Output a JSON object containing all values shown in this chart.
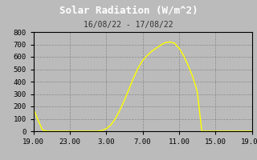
{
  "title": "Solar Radiation (W/m^2)",
  "subtitle": "16/08/22 - 17/08/22",
  "title_bg_color": "#000000",
  "plot_bg_color": "#bbbbbb",
  "fig_bg_color": "#bbbbbb",
  "line_color": "#ffff00",
  "title_color": "#ffffff",
  "subtitle_color": "#333333",
  "tick_color": "#000000",
  "grid_color": "#888888",
  "spine_color": "#000000",
  "ylim": [
    0,
    800
  ],
  "yticks": [
    0,
    100,
    200,
    300,
    400,
    500,
    600,
    700,
    800
  ],
  "xtick_labels": [
    "19.00",
    "23.00",
    "3.00",
    "7.00",
    "11.00",
    "15.00",
    "19.00"
  ],
  "xtick_positions": [
    0,
    4,
    8,
    12,
    16,
    20,
    24
  ],
  "x_hours": [
    0,
    0.5,
    1,
    1.5,
    2,
    3,
    4,
    5,
    6,
    7,
    7.5,
    8,
    8.5,
    9,
    9.5,
    10,
    10.5,
    11,
    11.5,
    12,
    12.5,
    13,
    13.5,
    14,
    14.5,
    15,
    15.5,
    16,
    16.5,
    17,
    17.5,
    18,
    18.5,
    19,
    19.5,
    20,
    21,
    22,
    23,
    24
  ],
  "y_values": [
    180,
    90,
    10,
    0,
    0,
    0,
    0,
    0,
    0,
    0,
    5,
    20,
    50,
    100,
    170,
    250,
    340,
    430,
    510,
    570,
    610,
    645,
    670,
    695,
    715,
    720,
    710,
    670,
    610,
    530,
    440,
    320,
    0,
    0,
    0,
    0,
    0,
    0,
    0,
    0
  ]
}
